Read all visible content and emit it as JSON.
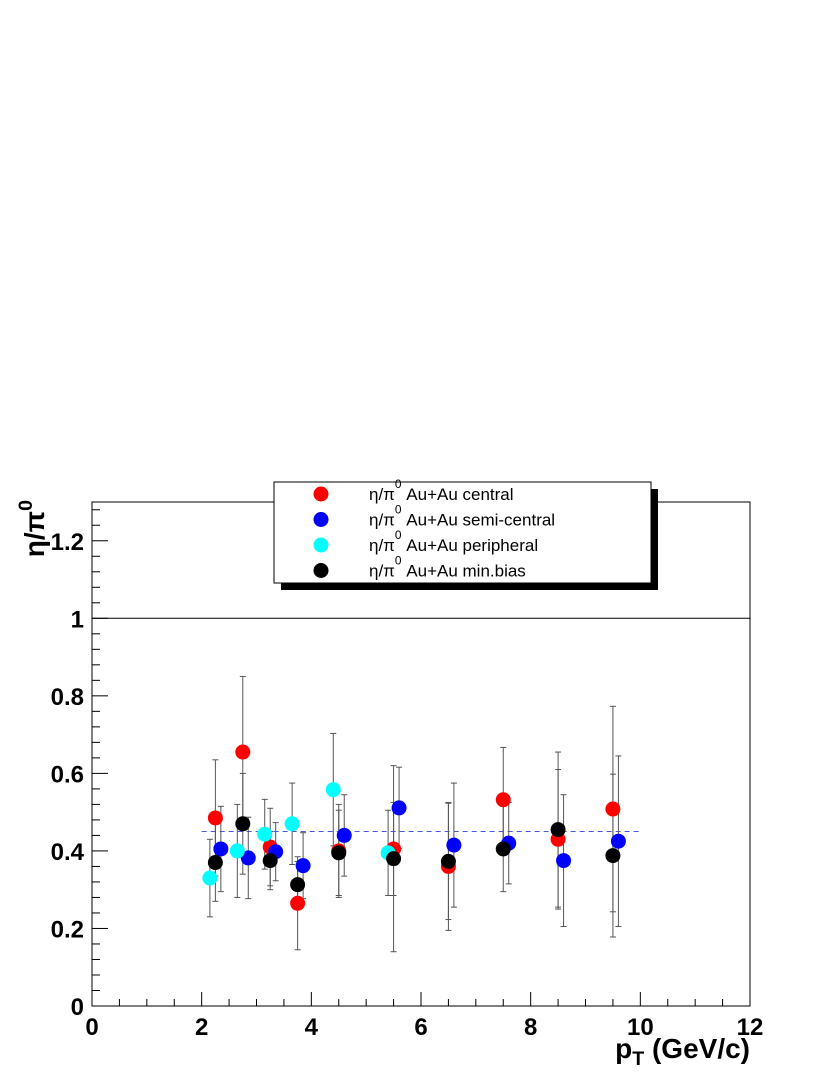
{
  "chart_data": {
    "type": "scatter",
    "xlabel": "p_T (GeV/c)",
    "ylabel": "η/π^0",
    "xlim": [
      0,
      12
    ],
    "ylim": [
      0,
      1.3
    ],
    "x_ticks": [
      {
        "value": 0,
        "label": "0"
      },
      {
        "value": 2,
        "label": "2"
      },
      {
        "value": 4,
        "label": "4"
      },
      {
        "value": 6,
        "label": "6"
      },
      {
        "value": 8,
        "label": "8"
      },
      {
        "value": 10,
        "label": "10"
      },
      {
        "value": 12,
        "label": "12"
      }
    ],
    "y_ticks": [
      {
        "value": 0,
        "label": "0"
      },
      {
        "value": 0.2,
        "label": "0.2"
      },
      {
        "value": 0.4,
        "label": "0.4"
      },
      {
        "value": 0.6,
        "label": "0.6"
      },
      {
        "value": 0.8,
        "label": "0.8"
      },
      {
        "value": 1.0,
        "label": "1"
      },
      {
        "value": 1.2,
        "label": "1.2"
      }
    ],
    "reference_lines": [
      {
        "y": 1.0,
        "style": "solid",
        "color": "#000000"
      },
      {
        "y": 0.45,
        "x_range": [
          2,
          10
        ],
        "style": "dashed",
        "color": "#4a56e0"
      }
    ],
    "legend_position": "top-center",
    "series": [
      {
        "name": "η/π^0 Au+Au central",
        "color": "#ff0000",
        "points": [
          {
            "x": 2.25,
            "y": 0.485,
            "err": 0.15
          },
          {
            "x": 2.75,
            "y": 0.655,
            "err": 0.195
          },
          {
            "x": 3.25,
            "y": 0.41,
            "err": 0.1
          },
          {
            "x": 3.75,
            "y": 0.265,
            "err": 0.12
          },
          {
            "x": 4.5,
            "y": 0.4,
            "err": 0.12
          },
          {
            "x": 5.5,
            "y": 0.405,
            "err": 0.12
          },
          {
            "x": 6.5,
            "y": 0.36,
            "err": 0.165
          },
          {
            "x": 7.5,
            "y": 0.532,
            "err": 0.135
          },
          {
            "x": 8.5,
            "y": 0.43,
            "err": 0.18
          },
          {
            "x": 9.5,
            "y": 0.508,
            "err": 0.265
          }
        ]
      },
      {
        "name": "η/π^0 Au+Au semi-central",
        "color": "#0000ff",
        "points": [
          {
            "x": 2.35,
            "y": 0.405,
            "err": 0.11
          },
          {
            "x": 2.85,
            "y": 0.382,
            "err": 0.105
          },
          {
            "x": 3.35,
            "y": 0.398,
            "err": 0.075
          },
          {
            "x": 3.85,
            "y": 0.362,
            "err": 0.085
          },
          {
            "x": 4.6,
            "y": 0.44,
            "err": 0.105
          },
          {
            "x": 5.6,
            "y": 0.511,
            "err": 0.105
          },
          {
            "x": 6.6,
            "y": 0.415,
            "err": 0.16
          },
          {
            "x": 7.6,
            "y": 0.42,
            "err": 0.105
          },
          {
            "x": 8.6,
            "y": 0.375,
            "err": 0.17
          },
          {
            "x": 9.6,
            "y": 0.425,
            "err": 0.22
          }
        ]
      },
      {
        "name": "η/π^0 Au+Au peripheral",
        "color": "#00ffff",
        "points": [
          {
            "x": 2.15,
            "y": 0.33,
            "err": 0.1
          },
          {
            "x": 2.65,
            "y": 0.4,
            "err": 0.12
          },
          {
            "x": 3.15,
            "y": 0.443,
            "err": 0.09
          },
          {
            "x": 3.65,
            "y": 0.47,
            "err": 0.105
          },
          {
            "x": 4.4,
            "y": 0.558,
            "err": 0.145
          },
          {
            "x": 5.4,
            "y": 0.395,
            "err": 0.11
          }
        ]
      },
      {
        "name": "η/π^0 Au+Au min.bias",
        "color": "#000000",
        "points": [
          {
            "x": 2.25,
            "y": 0.37,
            "err": 0.1
          },
          {
            "x": 2.75,
            "y": 0.47,
            "err": 0.13
          },
          {
            "x": 3.25,
            "y": 0.375,
            "err": 0.075
          },
          {
            "x": 3.75,
            "y": 0.313,
            "err": 0.06
          },
          {
            "x": 4.5,
            "y": 0.395,
            "err": 0.11
          },
          {
            "x": 5.5,
            "y": 0.38,
            "err": 0.24
          },
          {
            "x": 6.5,
            "y": 0.373,
            "err": 0.15
          },
          {
            "x": 7.5,
            "y": 0.405,
            "err": 0.11
          },
          {
            "x": 8.5,
            "y": 0.455,
            "err": 0.2
          },
          {
            "x": 9.5,
            "y": 0.388,
            "err": 0.21
          }
        ]
      }
    ]
  }
}
